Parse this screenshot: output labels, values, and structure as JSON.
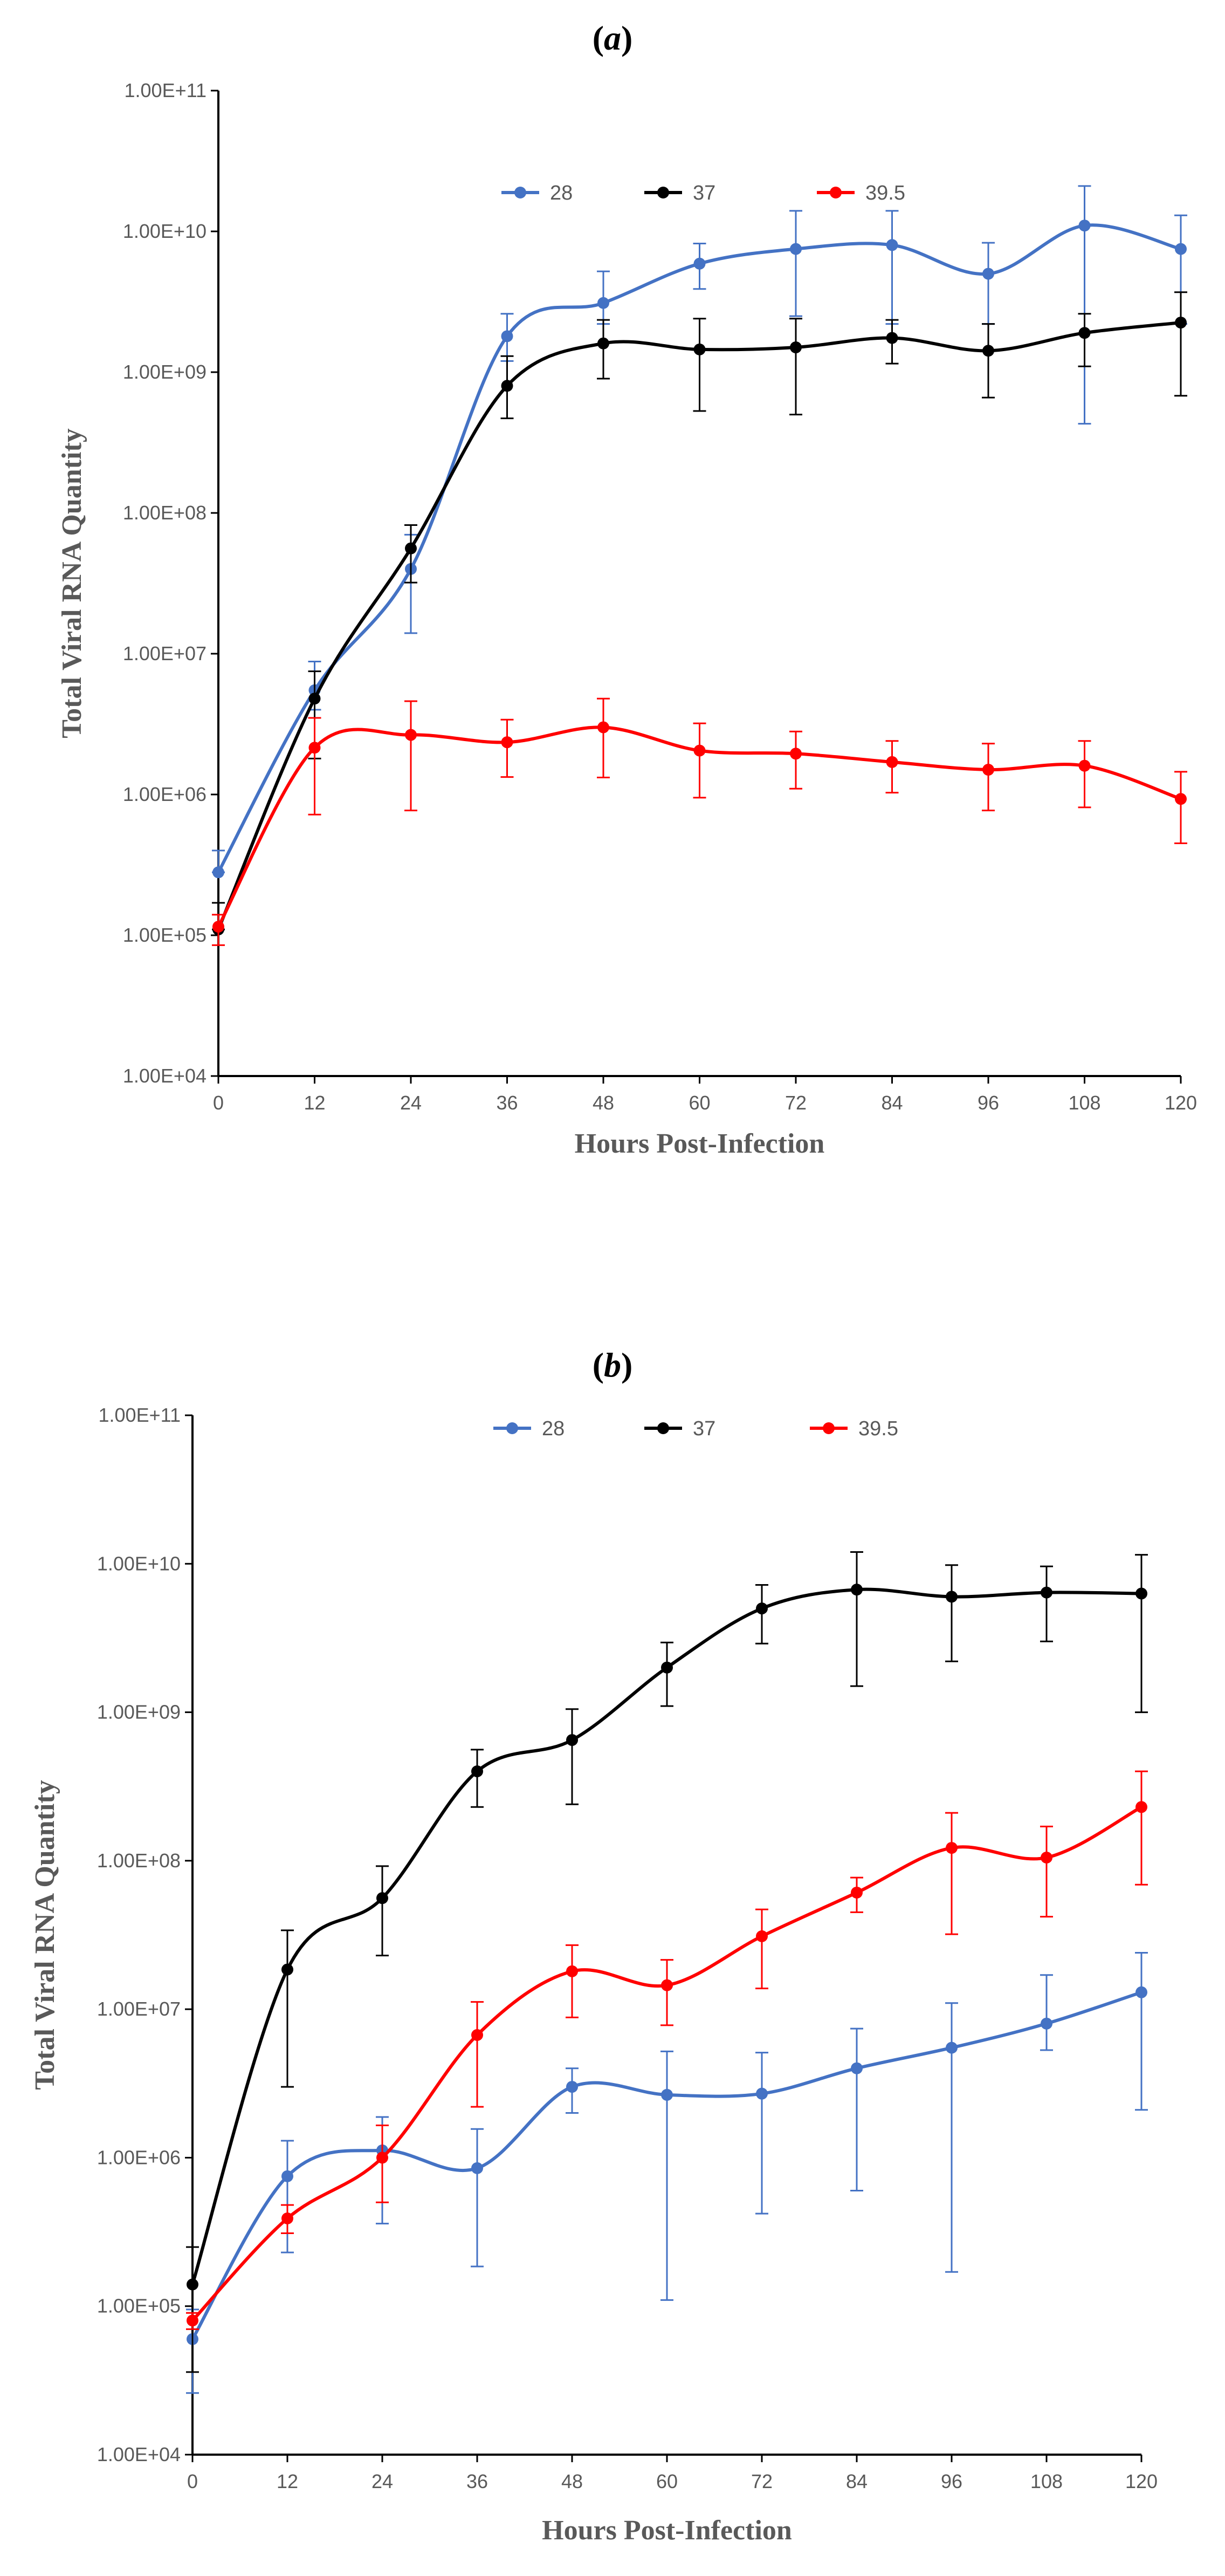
{
  "colors": {
    "28": "#4472C4",
    "37": "#000000",
    "39.5": "#FF0000"
  },
  "chart_data": [
    {
      "panel": "(a)",
      "label_open": "(",
      "label_letter": "a",
      "label_close": ")",
      "type": "line",
      "scale": "log",
      "xlabel": "Hours Post-Infection",
      "ylabel": "Total Viral RNA Quantity",
      "x": [
        0,
        12,
        24,
        36,
        48,
        60,
        72,
        84,
        96,
        108,
        120
      ],
      "x_tick_labels": [
        "0",
        "12",
        "24",
        "36",
        "48",
        "60",
        "72",
        "84",
        "96",
        "108",
        "120"
      ],
      "y_tick_labels": [
        "1.00E+04",
        "1.00E+05",
        "1.00E+06",
        "1.00E+07",
        "1.00E+08",
        "1.00E+09",
        "1.00E+10",
        "1.00E+11"
      ],
      "ylim": [
        10000,
        100000000000
      ],
      "xlim": [
        0,
        120
      ],
      "legend": [
        "28",
        "37",
        "39.5"
      ],
      "series": [
        {
          "name": "28",
          "values": [
            280000,
            5500000,
            40000000,
            1800000000,
            3100000000,
            5900000000,
            7500000000,
            8000000000,
            5000000000,
            11000000000,
            7500000000
          ],
          "err_low": [
            280000,
            4000000,
            14000000,
            1200000000,
            2200000000,
            3900000000,
            2500000000,
            2200000000,
            2200000000,
            430000000,
            2200000000
          ],
          "err_high": [
            400000,
            8800000,
            70000000,
            2600000000,
            5200000000,
            8200000000,
            14000000000,
            14000000000,
            8300000000,
            21000000000,
            13000000000
          ]
        },
        {
          "name": "37",
          "values": [
            110000,
            4800000,
            56000000,
            800000000,
            1600000000,
            1450000000,
            1500000000,
            1750000000,
            1420000000,
            1900000000,
            2250000000
          ],
          "err_low": [
            110000,
            1800000,
            32000000,
            470000000,
            900000000,
            530000000,
            500000000,
            1150000000,
            660000000,
            1100000000,
            680000000
          ],
          "err_high": [
            170000,
            7500000,
            82000000,
            1300000000,
            2350000000,
            2400000000,
            2400000000,
            2350000000,
            2200000000,
            2600000000,
            3700000000
          ]
        },
        {
          "name": "39.5",
          "values": [
            115000,
            2150000,
            2650000,
            2350000,
            3000000,
            2050000,
            1950000,
            1700000,
            1500000,
            1600000,
            930000
          ],
          "err_low": [
            85000,
            720000,
            770000,
            1330000,
            1320000,
            950000,
            1100000,
            1030000,
            770000,
            810000,
            450000
          ],
          "err_high": [
            140000,
            3500000,
            4600000,
            3400000,
            4800000,
            3200000,
            2800000,
            2400000,
            2300000,
            2400000,
            1450000
          ]
        }
      ]
    },
    {
      "panel": "(b)",
      "label_open": "(",
      "label_letter": "b",
      "label_close": ")",
      "type": "line",
      "scale": "log",
      "xlabel": "Hours Post-Infection",
      "ylabel": "Total Viral RNA Quantity",
      "x": [
        0,
        12,
        24,
        36,
        48,
        60,
        72,
        84,
        96,
        108,
        120
      ],
      "x_tick_labels": [
        "0",
        "12",
        "24",
        "36",
        "48",
        "60",
        "72",
        "84",
        "96",
        "108",
        "120"
      ],
      "y_tick_labels": [
        "1.00E+04",
        "1.00E+05",
        "1.00E+06",
        "1.00E+07",
        "1.00E+08",
        "1.00E+09",
        "1.00E+10",
        "1.00E+11"
      ],
      "ylim": [
        10000,
        100000000000
      ],
      "xlim": [
        0,
        120
      ],
      "legend": [
        "28",
        "37",
        "39.5"
      ],
      "series": [
        {
          "name": "28",
          "values": [
            60000,
            750000,
            1120000,
            850000,
            3000000,
            2650000,
            2700000,
            4000000,
            5500000,
            8000000,
            13000000
          ],
          "err_low": [
            26000,
            230000,
            360000,
            185000,
            2000000,
            110000,
            420000,
            600000,
            170000,
            5300000,
            2100000
          ],
          "err_high": [
            95000,
            1300000,
            1880000,
            1560000,
            4000000,
            5200000,
            5100000,
            7400000,
            11000000,
            17000000,
            24000000
          ]
        },
        {
          "name": "37",
          "values": [
            140000,
            18500000,
            56000000,
            400000000,
            650000000,
            2000000000,
            5000000000,
            6700000000,
            6000000000,
            6400000000,
            6300000000
          ],
          "err_low": [
            36000,
            3000000,
            23000000,
            230000000,
            240000000,
            1100000000,
            2900000000,
            1500000000,
            2200000000,
            3000000000,
            1000000000
          ],
          "err_high": [
            250000,
            34000000,
            92000000,
            560000000,
            1050000000,
            2950000000,
            7200000000,
            12000000000,
            9800000000,
            9600000000,
            11500000000
          ]
        },
        {
          "name": "39.5",
          "values": [
            80000,
            390000,
            1000000,
            6700000,
            18000000,
            14500000,
            31000000,
            61000000,
            122000000,
            105000000,
            230000000
          ],
          "err_low": [
            70000,
            310000,
            500000,
            2200000,
            8800000,
            7800000,
            13800000,
            45000000,
            32000000,
            42000000,
            69000000
          ],
          "err_high": [
            90000,
            480000,
            1650000,
            11200000,
            27000000,
            21500000,
            47000000,
            77000000,
            210000000,
            170000000,
            400000000
          ]
        }
      ]
    }
  ]
}
